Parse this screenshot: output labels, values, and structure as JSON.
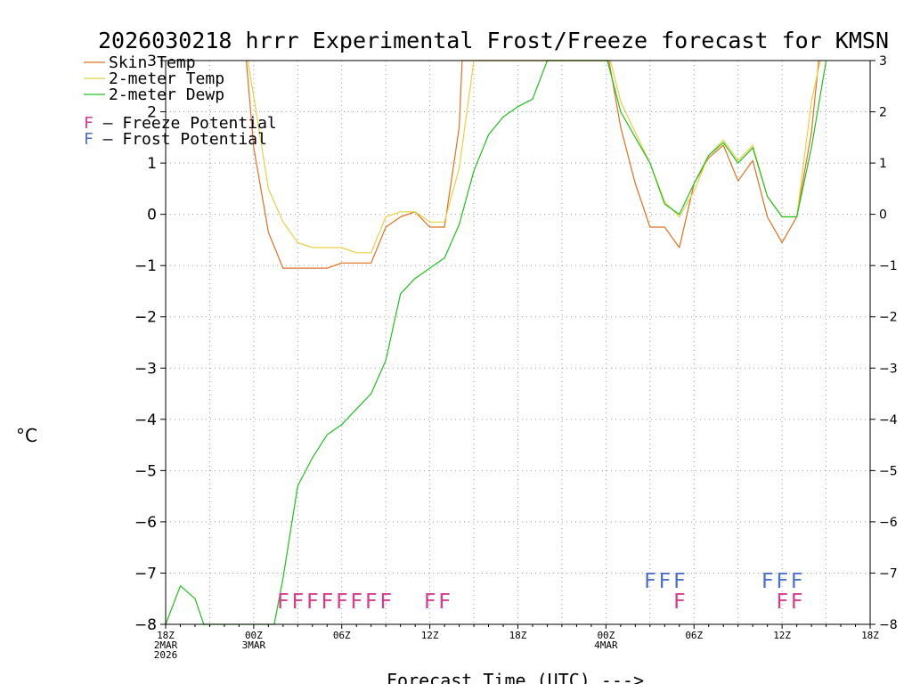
{
  "chart_data": {
    "type": "line",
    "title": "2026030218 hrrr Experimental Frost/Freeze forecast for KMSN",
    "ylabel": "°C",
    "xlabel": "Forecast Time (UTC) --->",
    "ylim": [
      -8,
      3
    ],
    "xlim": [
      0,
      48
    ],
    "yticks": [
      -8,
      -7,
      -6,
      -5,
      -4,
      -3,
      -2,
      -1,
      0,
      1,
      2,
      3
    ],
    "xticks": [
      {
        "hour": 0,
        "lines": [
          "18Z",
          "2MAR",
          "2026"
        ]
      },
      {
        "hour": 6,
        "lines": [
          "00Z",
          "3MAR"
        ]
      },
      {
        "hour": 12,
        "lines": [
          "06Z"
        ]
      },
      {
        "hour": 18,
        "lines": [
          "12Z"
        ]
      },
      {
        "hour": 24,
        "lines": [
          "18Z"
        ]
      },
      {
        "hour": 30,
        "lines": [
          "00Z",
          "4MAR"
        ]
      },
      {
        "hour": 36,
        "lines": [
          "06Z"
        ]
      },
      {
        "hour": 42,
        "lines": [
          "12Z"
        ]
      },
      {
        "hour": 48,
        "lines": [
          "18Z"
        ]
      }
    ],
    "series": [
      {
        "name": "Skin Temp",
        "color": "#e07020",
        "points": [
          [
            5.5,
            3.0
          ],
          [
            6,
            1.3
          ],
          [
            7,
            -0.35
          ],
          [
            8,
            -1.05
          ],
          [
            9,
            -1.05
          ],
          [
            10,
            -1.05
          ],
          [
            11,
            -1.05
          ],
          [
            12,
            -0.95
          ],
          [
            13,
            -0.95
          ],
          [
            14,
            -0.95
          ],
          [
            15,
            -0.25
          ],
          [
            16,
            -0.05
          ],
          [
            17,
            0.05
          ],
          [
            18,
            -0.25
          ],
          [
            19,
            -0.25
          ],
          [
            20,
            1.7
          ],
          [
            20.2,
            3.0
          ],
          [
            30.2,
            3.0
          ],
          [
            31,
            1.7
          ],
          [
            32,
            0.6
          ],
          [
            33,
            -0.25
          ],
          [
            34,
            -0.25
          ],
          [
            35,
            -0.65
          ],
          [
            36,
            0.6
          ],
          [
            37,
            1.1
          ],
          [
            38,
            1.35
          ],
          [
            39,
            0.65
          ],
          [
            40,
            1.05
          ],
          [
            41,
            -0.05
          ],
          [
            42,
            -0.55
          ],
          [
            43,
            -0.05
          ],
          [
            44,
            1.6
          ],
          [
            44.5,
            3.0
          ]
        ]
      },
      {
        "name": "2-meter Temp",
        "color": "#e8d040",
        "points": [
          [
            5.6,
            3.0
          ],
          [
            6,
            2.3
          ],
          [
            7,
            0.5
          ],
          [
            8,
            -0.15
          ],
          [
            9,
            -0.55
          ],
          [
            10,
            -0.65
          ],
          [
            11,
            -0.65
          ],
          [
            12,
            -0.65
          ],
          [
            13,
            -0.75
          ],
          [
            14,
            -0.75
          ],
          [
            15,
            -0.05
          ],
          [
            16,
            0.05
          ],
          [
            17,
            0.05
          ],
          [
            18,
            -0.15
          ],
          [
            19,
            -0.15
          ],
          [
            20,
            0.9
          ],
          [
            21,
            3.0
          ],
          [
            30.3,
            3.0
          ],
          [
            31,
            2.2
          ],
          [
            32,
            1.6
          ],
          [
            33,
            1.0
          ],
          [
            34,
            0.25
          ],
          [
            35,
            -0.05
          ],
          [
            36,
            0.45
          ],
          [
            37,
            1.15
          ],
          [
            38,
            1.45
          ],
          [
            39,
            1.05
          ],
          [
            40,
            1.35
          ],
          [
            41,
            0.35
          ],
          [
            42,
            -0.05
          ],
          [
            43,
            -0.05
          ],
          [
            44,
            2.2
          ],
          [
            44.6,
            3.0
          ]
        ]
      },
      {
        "name": "2-meter Dewp",
        "color": "#20c020",
        "points": [
          [
            0,
            -8.0
          ],
          [
            1,
            -7.25
          ],
          [
            2,
            -7.5
          ],
          [
            2.6,
            -8.0
          ],
          [
            7.4,
            -8.0
          ],
          [
            8,
            -7.1
          ],
          [
            9,
            -5.3
          ],
          [
            10,
            -4.75
          ],
          [
            11,
            -4.3
          ],
          [
            12,
            -4.1
          ],
          [
            13,
            -3.8
          ],
          [
            14,
            -3.5
          ],
          [
            15,
            -2.85
          ],
          [
            16,
            -1.55
          ],
          [
            17,
            -1.25
          ],
          [
            18,
            -1.05
          ],
          [
            19,
            -0.85
          ],
          [
            20,
            -0.2
          ],
          [
            21,
            0.85
          ],
          [
            22,
            1.55
          ],
          [
            23,
            1.9
          ],
          [
            24,
            2.1
          ],
          [
            25,
            2.25
          ],
          [
            26,
            3.0
          ],
          [
            30.1,
            3.0
          ],
          [
            31,
            2.0
          ],
          [
            32,
            1.5
          ],
          [
            33,
            1.0
          ],
          [
            34,
            0.2
          ],
          [
            35,
            0.0
          ],
          [
            36,
            0.6
          ],
          [
            37,
            1.15
          ],
          [
            38,
            1.4
          ],
          [
            39,
            1.0
          ],
          [
            40,
            1.3
          ],
          [
            41,
            0.35
          ],
          [
            42,
            -0.05
          ],
          [
            43,
            -0.05
          ],
          [
            44,
            1.3
          ],
          [
            45,
            3.0
          ]
        ]
      }
    ],
    "legend": [
      {
        "name": "Skin Temp",
        "color": "#e07020"
      },
      {
        "name": "2-meter Temp",
        "color": "#e8d040"
      },
      {
        "name": "2-meter Dewp",
        "color": "#20c020"
      }
    ],
    "potential_legend": [
      {
        "marker": "F",
        "text": " – Freeze Potential",
        "color": "#d83a8e"
      },
      {
        "marker": "F",
        "text": " – Frost Potential",
        "color": "#4a70c8"
      }
    ],
    "freeze_hours": [
      8,
      9,
      10,
      11,
      12,
      13,
      14,
      15,
      18,
      19,
      35,
      42,
      43
    ],
    "frost_hours": [
      33,
      34,
      35,
      41,
      42,
      43
    ],
    "freeze_color": "#d83a8e",
    "frost_color": "#4a70c8",
    "freeze_y": -7.55,
    "frost_y": -7.15
  }
}
